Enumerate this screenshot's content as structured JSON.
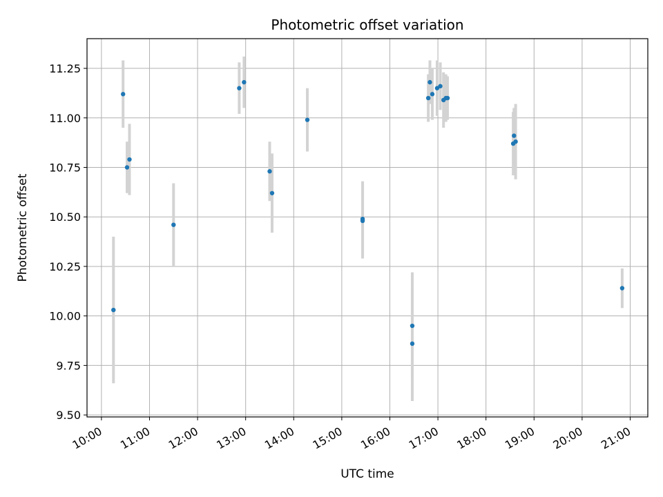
{
  "chart_data": {
    "type": "scatter",
    "title": "Photometric offset variation",
    "xlabel": "UTC time",
    "ylabel": "Photometric offset",
    "x_tick_labels": [
      "10:00",
      "11:00",
      "12:00",
      "13:00",
      "14:00",
      "15:00",
      "16:00",
      "17:00",
      "18:00",
      "19:00",
      "20:00",
      "21:00"
    ],
    "y_tick_values": [
      9.5,
      9.75,
      10.0,
      10.25,
      10.5,
      10.75,
      11.0,
      11.25
    ],
    "y_tick_labels": [
      "9.50",
      "9.75",
      "10.00",
      "10.25",
      "10.50",
      "10.75",
      "11.00",
      "11.25"
    ],
    "xlim": [
      "09:42",
      "21:22"
    ],
    "ylim": [
      9.49,
      11.4
    ],
    "grid": true,
    "marker_color": "#1f77b4",
    "errorbar_color": "#d3d3d3",
    "points": [
      {
        "x": "10:15",
        "y": 10.03,
        "yerr": 0.37
      },
      {
        "x": "10:27",
        "y": 11.12,
        "yerr": 0.17
      },
      {
        "x": "10:32",
        "y": 10.75,
        "yerr": 0.13
      },
      {
        "x": "10:35",
        "y": 10.79,
        "yerr": 0.18
      },
      {
        "x": "11:30",
        "y": 10.46,
        "yerr": 0.21
      },
      {
        "x": "12:52",
        "y": 11.15,
        "yerr": 0.13
      },
      {
        "x": "12:58",
        "y": 11.18,
        "yerr": 0.13
      },
      {
        "x": "13:30",
        "y": 10.73,
        "yerr": 0.15
      },
      {
        "x": "13:33",
        "y": 10.62,
        "yerr": 0.2
      },
      {
        "x": "14:17",
        "y": 10.99,
        "yerr": 0.16
      },
      {
        "x": "15:26",
        "y": 10.49,
        "yerr": 0.19
      },
      {
        "x": "15:26",
        "y": 10.48,
        "yerr": 0.19
      },
      {
        "x": "16:28",
        "y": 9.95,
        "yerr": 0.27
      },
      {
        "x": "16:28",
        "y": 9.86,
        "yerr": 0.29
      },
      {
        "x": "16:48",
        "y": 11.1,
        "yerr": 0.12
      },
      {
        "x": "16:50",
        "y": 11.18,
        "yerr": 0.11
      },
      {
        "x": "16:53",
        "y": 11.12,
        "yerr": 0.13
      },
      {
        "x": "16:59",
        "y": 11.15,
        "yerr": 0.14
      },
      {
        "x": "17:03",
        "y": 11.16,
        "yerr": 0.12
      },
      {
        "x": "17:07",
        "y": 11.09,
        "yerr": 0.14
      },
      {
        "x": "17:10",
        "y": 11.1,
        "yerr": 0.12
      },
      {
        "x": "17:12",
        "y": 11.1,
        "yerr": 0.11
      },
      {
        "x": "18:34",
        "y": 10.87,
        "yerr": 0.16
      },
      {
        "x": "18:35",
        "y": 10.91,
        "yerr": 0.14
      },
      {
        "x": "18:37",
        "y": 10.88,
        "yerr": 0.19
      },
      {
        "x": "20:50",
        "y": 10.14,
        "yerr": 0.1
      }
    ]
  }
}
